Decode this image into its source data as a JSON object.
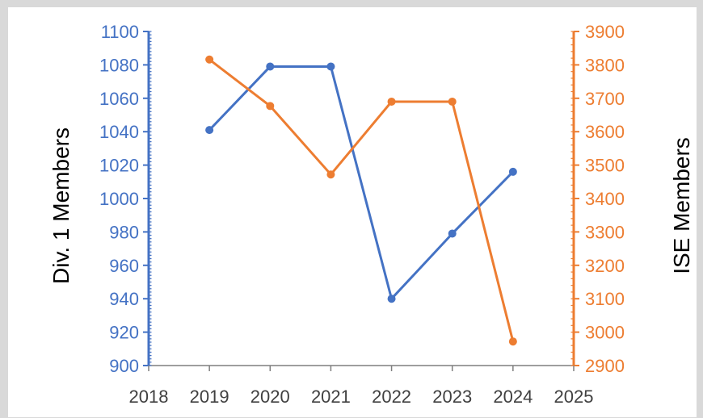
{
  "chart_data": {
    "type": "line",
    "title": "",
    "xlabel": "",
    "ylabel": "Div. 1 Members",
    "y2label": "ISE Members",
    "x_ticks": [
      "2018",
      "2019",
      "2020",
      "2021",
      "2022",
      "2023",
      "2024",
      "2025"
    ],
    "xlim": [
      2018,
      2025
    ],
    "ylim": [
      900,
      1100
    ],
    "y_ticks": [
      "900",
      "920",
      "940",
      "960",
      "980",
      "1000",
      "1020",
      "1040",
      "1060",
      "1080",
      "1100"
    ],
    "y2lim": [
      2900,
      3900
    ],
    "y2_ticks": [
      "2900",
      "3000",
      "3100",
      "3200",
      "3300",
      "3400",
      "3500",
      "3600",
      "3700",
      "3800",
      "3900"
    ],
    "grid": false,
    "legend": "none",
    "series": [
      {
        "axis": "left",
        "color": "#4472c4",
        "x": [
          2019,
          2020,
          2021,
          2022,
          2023,
          2024
        ],
        "values": [
          1041,
          1079,
          1079,
          940,
          979,
          1016
        ]
      },
      {
        "axis": "right",
        "color": "#ed7d31",
        "x": [
          2019,
          2020,
          2021,
          2022,
          2023,
          2024
        ],
        "values": [
          3816,
          3677,
          3472,
          3690,
          3690,
          2972
        ]
      }
    ]
  }
}
